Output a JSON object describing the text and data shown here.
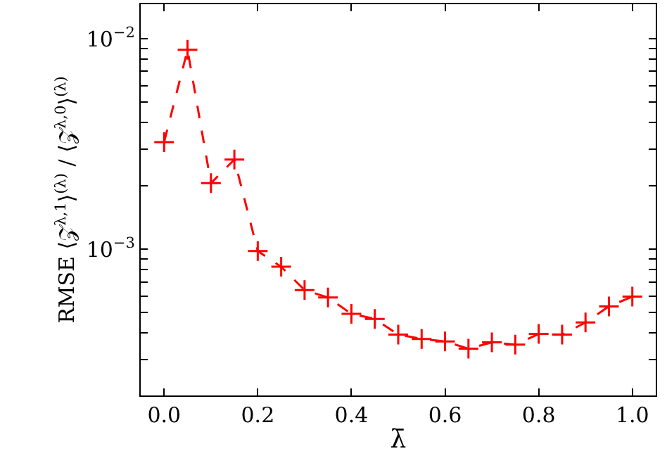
{
  "chart_data": {
    "type": "line",
    "xlabel": "λ̄",
    "ylabel": "RMSE ⟨𝒵$^{λ,1}$⟩$^{(λ)}$ / ⟨𝒵$^{λ,0}$⟩$^{(λ)}$",
    "x": [
      0,
      0.05,
      0.1,
      0.15,
      0.2,
      0.25,
      0.3,
      0.35,
      0.4,
      0.45,
      0.5,
      0.55,
      0.6,
      0.65,
      0.7,
      0.75,
      0.8,
      0.85,
      0.9,
      0.95,
      1.0
    ],
    "series": [
      {
        "color": "#ff0000",
        "values": [
          0.00323,
          0.00887,
          0.00206,
          0.00267,
          0.00098,
          0.000826,
          0.00064,
          0.00059,
          0.000493,
          0.000467,
          0.000393,
          0.000375,
          0.000365,
          0.000337,
          0.000361,
          0.000352,
          0.000396,
          0.000393,
          0.000449,
          0.000535,
          0.000596
        ]
      }
    ],
    "log": true,
    "marker": "cross",
    "line_style": "dashed",
    "xlim": [
      -0.05,
      1.05
    ],
    "xticks": [
      {
        "value": 0,
        "label": "0.0"
      },
      0.2,
      0.4,
      0.6,
      0.8,
      {
        "value": 1,
        "label": "1.0"
      }
    ],
    "ylim": [
      0.000202,
      0.0146
    ],
    "yticks": [
      {
        "value": 0.0003,
        "label": null
      },
      {
        "value": 0.0004,
        "label": null
      },
      {
        "value": 0.0005,
        "label": null
      },
      {
        "value": 0.0006,
        "label": null
      },
      {
        "value": 0.0007,
        "label": null
      },
      {
        "value": 0.0008,
        "label": null
      },
      {
        "value": 0.0009,
        "label": null
      },
      {
        "value": 0.001,
        "label": "10$^{−3}$"
      },
      {
        "value": 0.002,
        "label": null
      },
      {
        "value": 0.003,
        "label": null
      },
      {
        "value": 0.004,
        "label": null
      },
      {
        "value": 0.005,
        "label": null
      },
      {
        "value": 0.006,
        "label": null
      },
      {
        "value": 0.007,
        "label": null
      },
      {
        "value": 0.008,
        "label": null
      },
      {
        "value": 0.009,
        "label": null
      },
      {
        "value": 0.01,
        "label": "10$^{−2}$"
      }
    ]
  }
}
